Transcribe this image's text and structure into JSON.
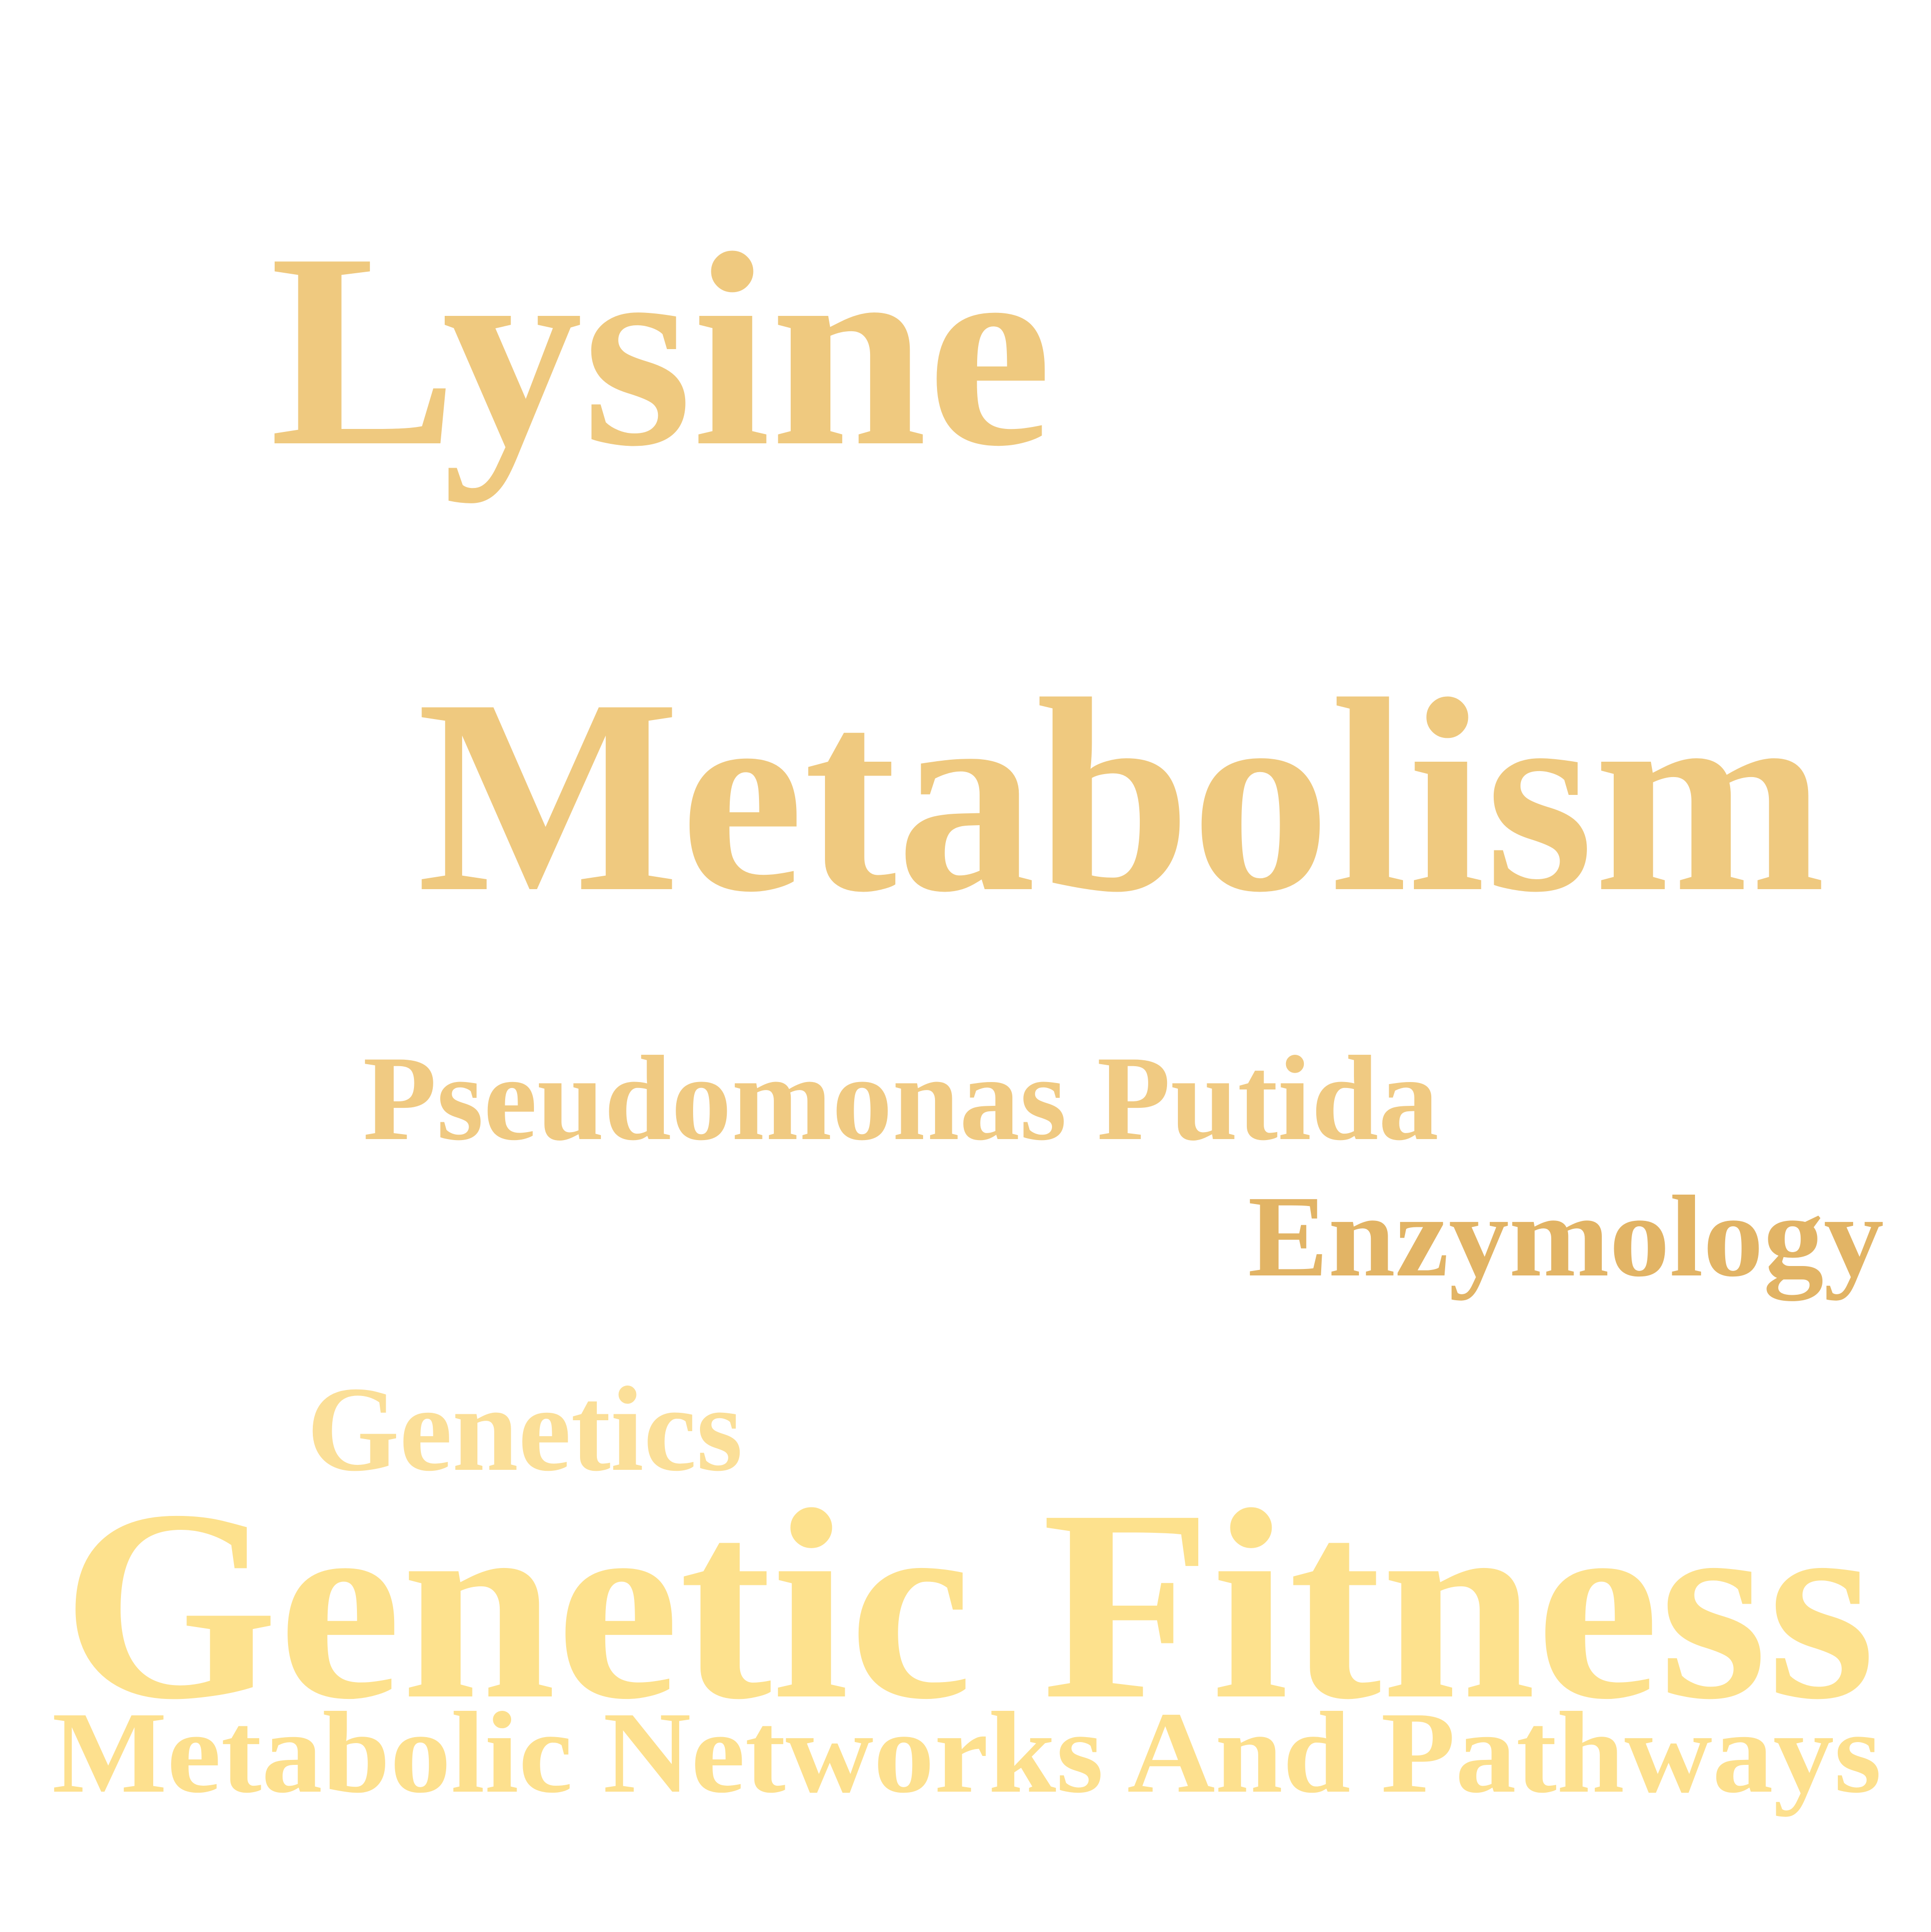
{
  "words": [
    {
      "text": "Lysine",
      "color": "#efc97f"
    },
    {
      "text": "Metabolism",
      "color": "#efc97f"
    },
    {
      "text": "Pseudomonas Putida",
      "color": "#f0ca82"
    },
    {
      "text": "Enzymology",
      "color": "#e2b465"
    },
    {
      "text": "Genetics",
      "color": "#fbdf98"
    },
    {
      "text": "Genetic Fitness",
      "color": "#fde18d"
    },
    {
      "text": "Metabolic Networks And Pathways",
      "color": "#fde08e"
    }
  ]
}
